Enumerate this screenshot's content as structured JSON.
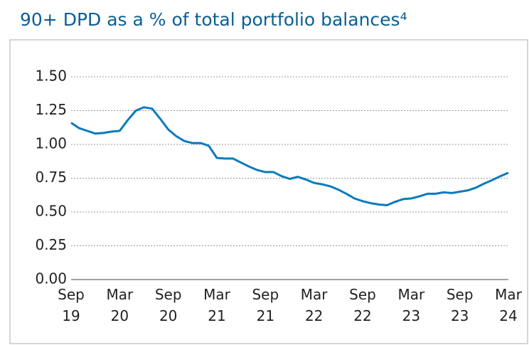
{
  "chart_data": {
    "type": "line",
    "title": "90+ DPD as a % of total portfolio balances⁴",
    "categories": [
      "Sep 19",
      null,
      null,
      null,
      null,
      null,
      "Mar 20",
      null,
      null,
      null,
      null,
      null,
      "Sep 20",
      null,
      null,
      null,
      null,
      null,
      "Mar 21",
      null,
      null,
      null,
      null,
      null,
      "Sep 21",
      null,
      null,
      null,
      null,
      null,
      "Mar 22",
      null,
      null,
      null,
      null,
      null,
      "Sep 22",
      null,
      null,
      null,
      null,
      null,
      "Mar 23",
      null,
      null,
      null,
      null,
      null,
      "Sep 23",
      null,
      null,
      null,
      null,
      null,
      "Mar 24"
    ],
    "series": [
      {
        "color": "#0a7bbd",
        "values": [
          1.16,
          1.12,
          1.1,
          1.08,
          1.085,
          1.095,
          1.1,
          1.18,
          1.25,
          1.275,
          1.265,
          1.19,
          1.11,
          1.06,
          1.025,
          1.01,
          1.01,
          0.99,
          0.9,
          0.895,
          0.895,
          0.865,
          0.835,
          0.81,
          0.795,
          0.795,
          0.765,
          0.745,
          0.76,
          0.74,
          0.715,
          0.705,
          0.69,
          0.665,
          0.635,
          0.6,
          0.58,
          0.565,
          0.555,
          0.55,
          0.575,
          0.595,
          0.6,
          0.615,
          0.635,
          0.635,
          0.645,
          0.64,
          0.65,
          0.66,
          0.68,
          0.71,
          0.735,
          0.765,
          0.79
        ]
      }
    ],
    "ylim": [
      0,
      1.5
    ],
    "yticks": [
      {
        "value": 0,
        "label": "0.00"
      },
      {
        "value": 0.25,
        "label": "0.25"
      },
      {
        "value": 0.5,
        "label": "0.50"
      },
      {
        "value": 0.75,
        "label": "0.75"
      },
      {
        "value": 1,
        "label": "1.00"
      },
      {
        "value": 1.25,
        "label": "1.25"
      },
      {
        "value": 1.5,
        "label": "1.50"
      }
    ],
    "grid": true
  }
}
